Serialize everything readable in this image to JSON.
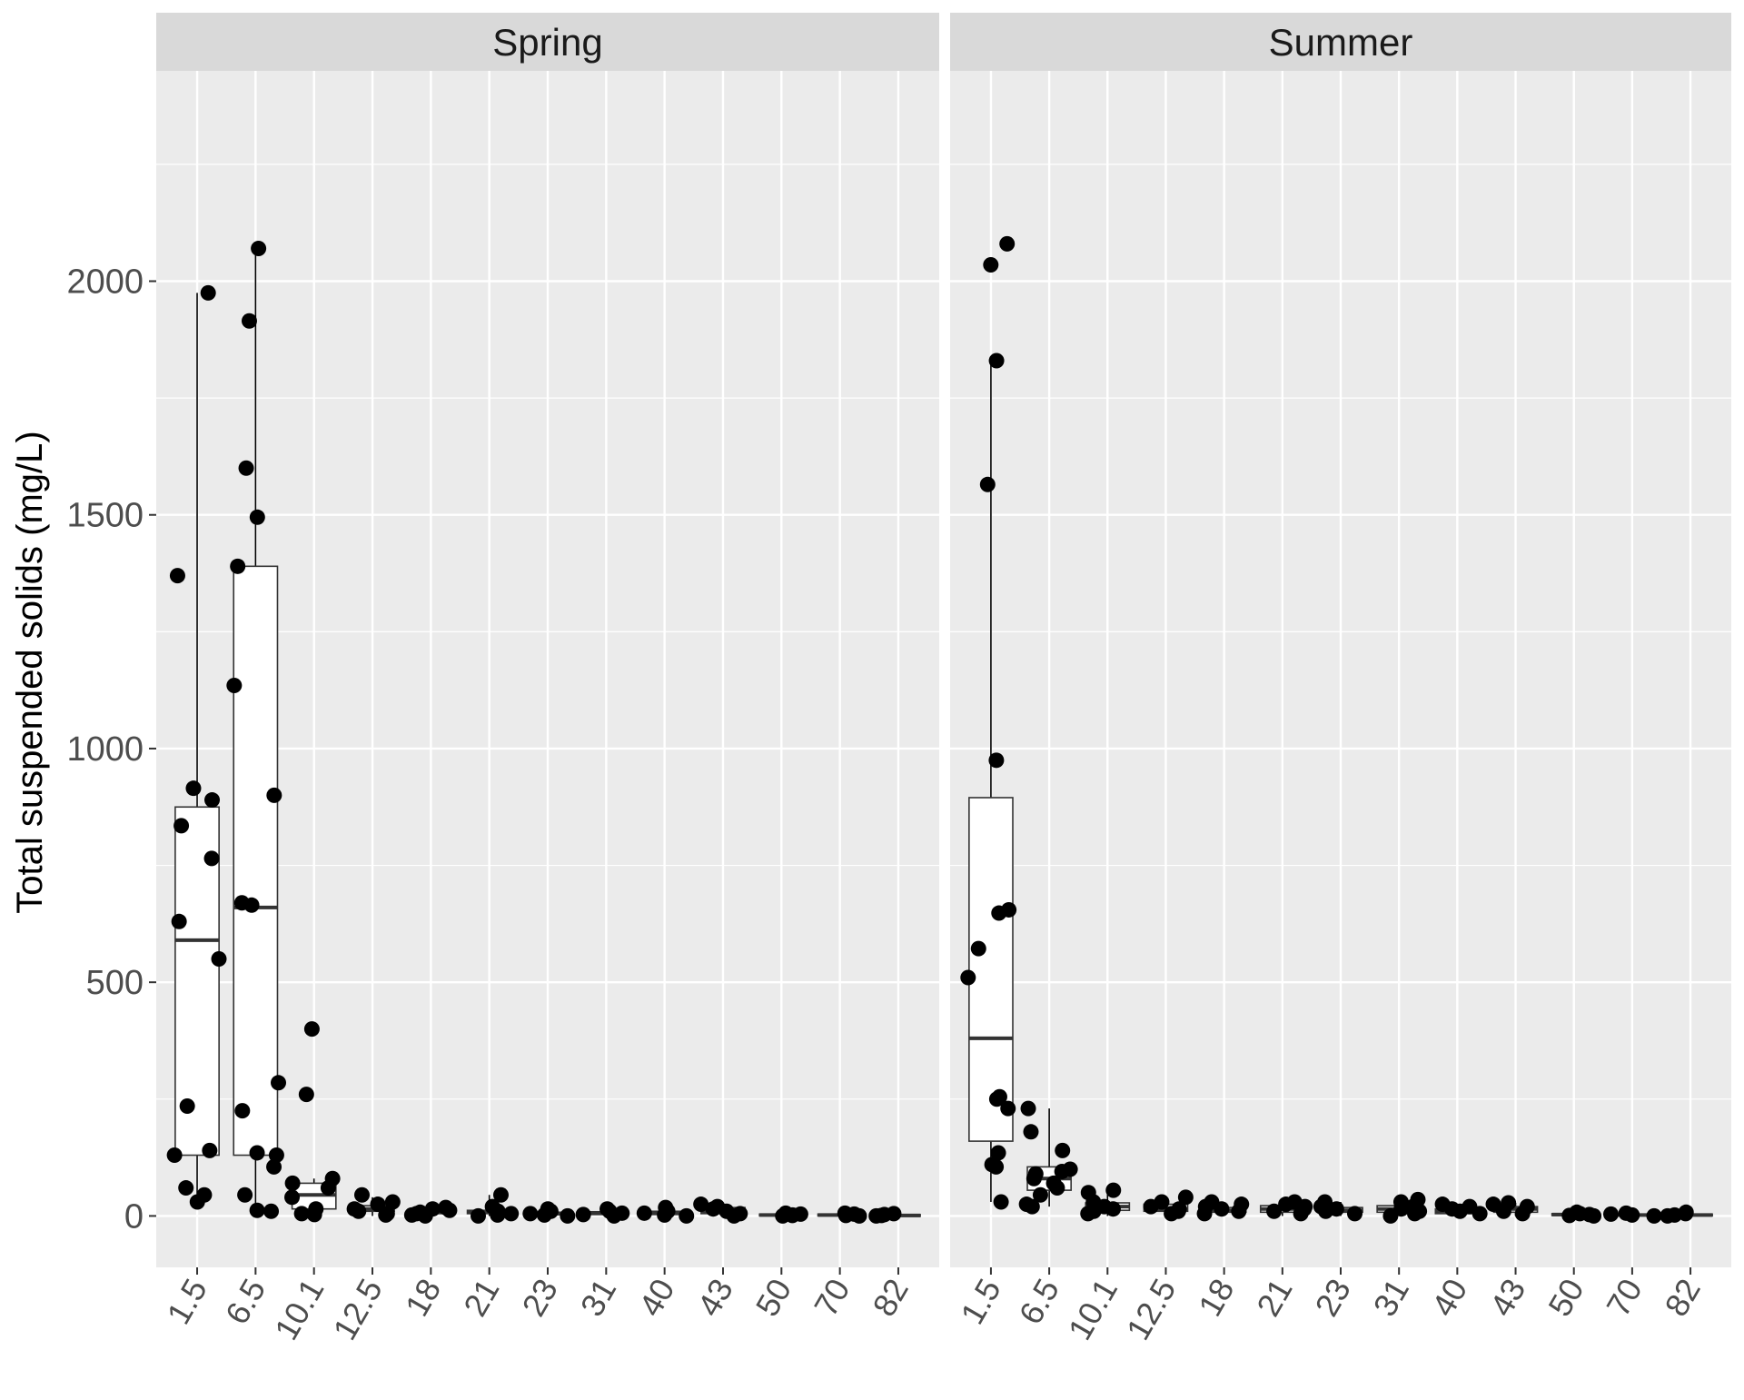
{
  "chart_data": {
    "type": "boxplot",
    "ylabel": "Total suspended solids (mg/L)",
    "xlabel": "",
    "ylim": [
      -110,
      2450
    ],
    "yticks": [
      0,
      500,
      1000,
      1500,
      2000
    ],
    "categories": [
      "1.5",
      "6.5",
      "10.1",
      "12.5",
      "18",
      "21",
      "23",
      "31",
      "40",
      "43",
      "50",
      "70",
      "82"
    ],
    "grid": true,
    "colors": {
      "panel_bg": "#ebebeb",
      "strip_bg": "#d9d9d9",
      "grid": "#ffffff",
      "point": "#000000",
      "box_fill": "#ffffff",
      "box_line": "#333333"
    },
    "panels": [
      {
        "name": "Spring",
        "boxes": [
          {
            "category": "1.5",
            "min": 20,
            "q1": 130,
            "median": 590,
            "q3": 875,
            "max": 1975
          },
          {
            "category": "6.5",
            "min": 10,
            "q1": 130,
            "median": 660,
            "q3": 1390,
            "max": 2070
          },
          {
            "category": "10.1",
            "min": 0,
            "q1": 15,
            "median": 45,
            "q3": 70,
            "max": 80
          },
          {
            "category": "12.5",
            "min": 0,
            "q1": 10,
            "median": 15,
            "q3": 22,
            "max": 40
          },
          {
            "category": "18",
            "min": 0,
            "q1": 5,
            "median": 8,
            "q3": 12,
            "max": 18
          },
          {
            "category": "21",
            "min": 0,
            "q1": 5,
            "median": 8,
            "q3": 12,
            "max": 45
          },
          {
            "category": "23",
            "min": 0,
            "q1": 3,
            "median": 5,
            "q3": 8,
            "max": 15
          },
          {
            "category": "31",
            "min": 0,
            "q1": 3,
            "median": 6,
            "q3": 9,
            "max": 15
          },
          {
            "category": "40",
            "min": 0,
            "q1": 3,
            "median": 6,
            "q3": 10,
            "max": 18
          },
          {
            "category": "43",
            "min": 0,
            "q1": 5,
            "median": 10,
            "q3": 18,
            "max": 25
          },
          {
            "category": "50",
            "min": 0,
            "q1": 1,
            "median": 2,
            "q3": 4,
            "max": 6
          },
          {
            "category": "70",
            "min": 0,
            "q1": 1,
            "median": 2,
            "q3": 4,
            "max": 6
          },
          {
            "category": "82",
            "min": 0,
            "q1": 1,
            "median": 1,
            "q3": 3,
            "max": 5
          }
        ],
        "points": [
          {
            "category": "1.5",
            "values": [
              1975,
              1370,
              915,
              890,
              835,
              765,
              630,
              550,
              235,
              140,
              130,
              60,
              45,
              30
            ]
          },
          {
            "category": "6.5",
            "values": [
              2070,
              1915,
              1600,
              1495,
              1390,
              1135,
              900,
              670,
              665,
              285,
              225,
              135,
              130,
              105,
              45,
              12,
              10
            ]
          },
          {
            "category": "10.1",
            "values": [
              400,
              260,
              80,
              70,
              60,
              40,
              15,
              5,
              3
            ]
          },
          {
            "category": "12.5",
            "values": [
              45,
              30,
              25,
              15,
              10,
              5,
              2
            ]
          },
          {
            "category": "18",
            "values": [
              18,
              15,
              12,
              8,
              5,
              2,
              0
            ]
          },
          {
            "category": "21",
            "values": [
              45,
              20,
              10,
              5,
              2,
              0
            ]
          },
          {
            "category": "23",
            "values": [
              15,
              10,
              5,
              2,
              0
            ]
          },
          {
            "category": "31",
            "values": [
              15,
              10,
              6,
              3,
              0
            ]
          },
          {
            "category": "40",
            "values": [
              18,
              10,
              6,
              2,
              0
            ]
          },
          {
            "category": "43",
            "values": [
              25,
              20,
              15,
              10,
              5,
              0
            ]
          },
          {
            "category": "50",
            "values": [
              6,
              4,
              2,
              1,
              0
            ]
          },
          {
            "category": "70",
            "values": [
              6,
              4,
              2,
              1,
              0
            ]
          },
          {
            "category": "82",
            "values": [
              5,
              3,
              1,
              0
            ]
          }
        ]
      },
      {
        "name": "Summer",
        "boxes": [
          {
            "category": "1.5",
            "min": 30,
            "q1": 160,
            "median": 380,
            "q3": 895,
            "max": 1825
          },
          {
            "category": "6.5",
            "min": 20,
            "q1": 55,
            "median": 80,
            "q3": 105,
            "max": 230
          },
          {
            "category": "10.1",
            "min": 0,
            "q1": 12,
            "median": 20,
            "q3": 28,
            "max": 55
          },
          {
            "category": "12.5",
            "min": 0,
            "q1": 10,
            "median": 15,
            "q3": 25,
            "max": 40
          },
          {
            "category": "18",
            "min": 0,
            "q1": 8,
            "median": 12,
            "q3": 18,
            "max": 30
          },
          {
            "category": "21",
            "min": 0,
            "q1": 8,
            "median": 15,
            "q3": 22,
            "max": 30
          },
          {
            "category": "23",
            "min": 0,
            "q1": 8,
            "median": 12,
            "q3": 18,
            "max": 30
          },
          {
            "category": "31",
            "min": 0,
            "q1": 8,
            "median": 15,
            "q3": 22,
            "max": 35
          },
          {
            "category": "40",
            "min": 0,
            "q1": 5,
            "median": 10,
            "q3": 15,
            "max": 25
          },
          {
            "category": "43",
            "min": 0,
            "q1": 8,
            "median": 15,
            "q3": 20,
            "max": 28
          },
          {
            "category": "50",
            "min": 0,
            "q1": 1,
            "median": 3,
            "q3": 5,
            "max": 8
          },
          {
            "category": "70",
            "min": 0,
            "q1": 1,
            "median": 2,
            "q3": 4,
            "max": 6
          },
          {
            "category": "82",
            "min": 0,
            "q1": 1,
            "median": 2,
            "q3": 4,
            "max": 8
          }
        ],
        "points": [
          {
            "category": "1.5",
            "values": [
              2080,
              2035,
              1830,
              1565,
              975,
              655,
              648,
              572,
              510,
              255,
              250,
              230,
              135,
              110,
              105,
              30
            ]
          },
          {
            "category": "6.5",
            "values": [
              230,
              180,
              140,
              100,
              95,
              90,
              80,
              70,
              60,
              45,
              25,
              20
            ]
          },
          {
            "category": "10.1",
            "values": [
              55,
              50,
              30,
              20,
              15,
              10,
              5
            ]
          },
          {
            "category": "12.5",
            "values": [
              40,
              30,
              20,
              15,
              10,
              5
            ]
          },
          {
            "category": "18",
            "values": [
              30,
              25,
              20,
              15,
              10,
              5
            ]
          },
          {
            "category": "21",
            "values": [
              30,
              25,
              20,
              15,
              10,
              5
            ]
          },
          {
            "category": "23",
            "values": [
              30,
              25,
              20,
              15,
              10,
              5
            ]
          },
          {
            "category": "31",
            "values": [
              35,
              30,
              20,
              15,
              10,
              5,
              0
            ]
          },
          {
            "category": "40",
            "values": [
              25,
              20,
              15,
              10,
              5
            ]
          },
          {
            "category": "43",
            "values": [
              28,
              25,
              20,
              10,
              5
            ]
          },
          {
            "category": "50",
            "values": [
              8,
              5,
              3,
              1,
              0
            ]
          },
          {
            "category": "70",
            "values": [
              6,
              4,
              2,
              0
            ]
          },
          {
            "category": "82",
            "values": [
              8,
              5,
              2,
              0
            ]
          }
        ]
      }
    ]
  }
}
